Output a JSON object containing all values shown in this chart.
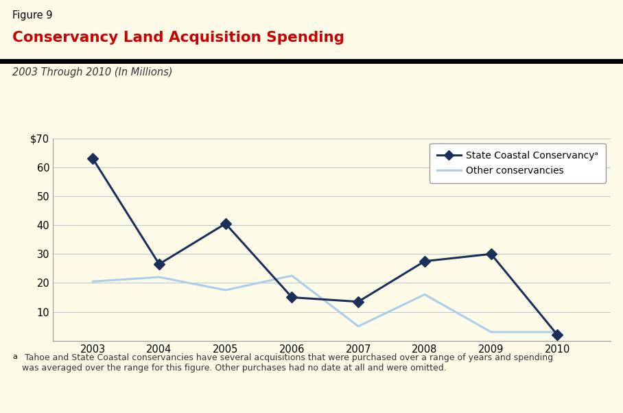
{
  "figure_label": "Figure 9",
  "title": "Conservancy Land Acquisition Spending",
  "subtitle": "2003 Through 2010 (In Millions)",
  "footnote_superscript": "a",
  "footnote_text": " Tahoe and State Coastal conservancies have several acquisitions that were purchased over a range of years and spending\nwas averaged over the range for this figure. Other purchases had no date at all and were omitted.",
  "years": [
    2003,
    2004,
    2005,
    2006,
    2007,
    2008,
    2009,
    2010
  ],
  "scc_values": [
    63,
    26.5,
    40.5,
    15,
    13.5,
    27.5,
    30,
    2
  ],
  "other_values": [
    20.5,
    22,
    17.5,
    22.5,
    5,
    16,
    3,
    3
  ],
  "scc_color": "#1a2f5a",
  "other_color": "#aacde8",
  "scc_label": "State Coastal Conservancy",
  "other_label": "Other conservancies",
  "bg_color": "#fdfbe8",
  "plot_bg_color": "#fdfbe8",
  "grid_color": "#c0c8d0",
  "ylim": [
    0,
    70
  ],
  "yticks": [
    0,
    10,
    20,
    30,
    40,
    50,
    60,
    70
  ],
  "ytick_labels": [
    "",
    "10",
    "20",
    "30",
    "40",
    "50",
    "60",
    "$70"
  ],
  "title_color": "#cc0000",
  "figure_label_color": "#000000",
  "subtitle_color": "#333333",
  "line_width": 2.2,
  "marker_size": 8
}
